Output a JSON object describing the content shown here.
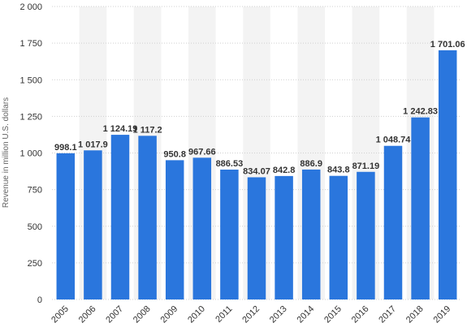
{
  "chart_data": {
    "type": "bar",
    "categories": [
      "2005",
      "2006",
      "2007",
      "2008",
      "2009",
      "2010",
      "2011",
      "2012",
      "2013",
      "2014",
      "2015",
      "2016",
      "2017",
      "2018",
      "2019"
    ],
    "values": [
      998.1,
      1017.9,
      1124.19,
      1117.2,
      950.8,
      967.66,
      886.53,
      834.07,
      842.8,
      886.9,
      843.8,
      871.19,
      1048.74,
      1242.83,
      1701.06
    ],
    "data_labels": [
      "998.1",
      "1 017.9",
      "1 124.19",
      "1 117.2",
      "950.8",
      "967.66",
      "886.53",
      "834.07",
      "842.8",
      "886.9",
      "843.8",
      "871.19",
      "1 048.74",
      "1 242.83",
      "1 701.06"
    ],
    "ylabel": "Revenue in million U.S. dollars",
    "xlabel": "",
    "ylim": [
      0,
      2000
    ],
    "y_ticks": [
      0,
      250,
      500,
      750,
      1000,
      1250,
      1500,
      1750,
      2000
    ],
    "y_tick_labels": [
      "0",
      "250",
      "500",
      "750",
      "1 000",
      "1 250",
      "1 500",
      "1 750",
      "2 000"
    ],
    "grid": true,
    "bar_color": "#2a76dd",
    "stripe_color": "#f3f3f3"
  }
}
